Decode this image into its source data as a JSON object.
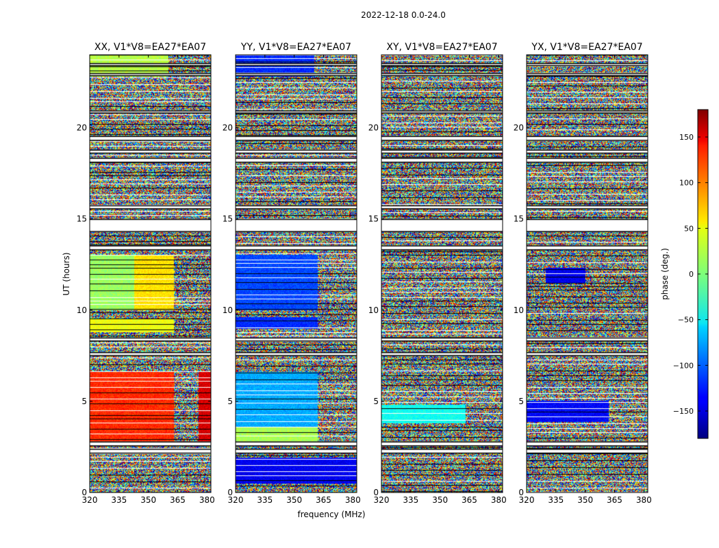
{
  "chart_data": {
    "type": "heatmap",
    "suptitle": "2022-12-18 0.0-24.0",
    "xlabel": "frequency (MHz)",
    "ylabel": "UT (hours)",
    "xlim": [
      320,
      382
    ],
    "ylim": [
      0,
      24
    ],
    "xticks": [
      320,
      335,
      350,
      365,
      380
    ],
    "yticks": [
      0,
      5,
      10,
      15,
      20
    ],
    "colorbar": {
      "label": "phase (deg.)",
      "colormap": "jet",
      "range": [
        -180,
        180
      ],
      "ticks": [
        150,
        100,
        50,
        0,
        -50,
        -100,
        -150
      ],
      "tick_labels": [
        "150",
        "100",
        "50",
        "0",
        "−50",
        "−100",
        "−150"
      ]
    },
    "flagged_time_ranges_hours": [
      [
        2.15,
        2.4
      ],
      [
        2.55,
        2.8
      ],
      [
        7.5,
        7.7
      ],
      [
        8.3,
        8.5
      ],
      [
        13.3,
        13.55
      ],
      [
        14.3,
        15.0
      ],
      [
        15.55,
        15.75
      ],
      [
        18.1,
        18.35
      ],
      [
        18.6,
        18.8
      ],
      [
        19.3,
        19.55
      ],
      [
        20.8,
        20.95
      ],
      [
        22.85,
        23.0
      ],
      [
        23.4,
        23.55
      ]
    ],
    "panels": [
      {
        "title": "XX, V1*V8=EA27*EA07",
        "coherent_segments": [
          {
            "t": [
              2.8,
              6.6
            ],
            "f": [
              320,
              363
            ],
            "phase": 120
          },
          {
            "t": [
              2.8,
              6.6
            ],
            "f": [
              376,
              382
            ],
            "phase": 150
          },
          {
            "t": [
              8.8,
              9.5
            ],
            "f": [
              320,
              363
            ],
            "phase": 40
          },
          {
            "t": [
              10.0,
              13.0
            ],
            "f": [
              320,
              343
            ],
            "phase": 10
          },
          {
            "t": [
              10.0,
              13.0
            ],
            "f": [
              343,
              363
            ],
            "phase": 55
          },
          {
            "t": [
              22.8,
              24.0
            ],
            "f": [
              320,
              360
            ],
            "phase": 20
          }
        ]
      },
      {
        "title": "YY, V1*V8=EA27*EA07",
        "coherent_segments": [
          {
            "t": [
              2.8,
              3.6
            ],
            "f": [
              320,
              362
            ],
            "phase": 15
          },
          {
            "t": [
              3.6,
              6.6
            ],
            "f": [
              320,
              362
            ],
            "phase": -75
          },
          {
            "t": [
              9.0,
              9.6
            ],
            "f": [
              320,
              362
            ],
            "phase": -120
          },
          {
            "t": [
              10.0,
              13.0
            ],
            "f": [
              320,
              362
            ],
            "phase": -110
          },
          {
            "t": [
              22.8,
              24.0
            ],
            "f": [
              320,
              360
            ],
            "phase": -120
          },
          {
            "t": [
              0.5,
              1.9
            ],
            "f": [
              320,
              382
            ],
            "phase": -140
          }
        ]
      },
      {
        "title": "XY, V1*V8=EA27*EA07",
        "coherent_segments": [
          {
            "t": [
              3.8,
              4.8
            ],
            "f": [
              320,
              363
            ],
            "phase": -40
          }
        ]
      },
      {
        "title": "YX, V1*V8=EA27*EA07",
        "coherent_segments": [
          {
            "t": [
              3.9,
              5.0
            ],
            "f": [
              320,
              362
            ],
            "phase": -135
          },
          {
            "t": [
              11.5,
              12.3
            ],
            "f": [
              330,
              350
            ],
            "phase": -140
          }
        ]
      }
    ]
  }
}
